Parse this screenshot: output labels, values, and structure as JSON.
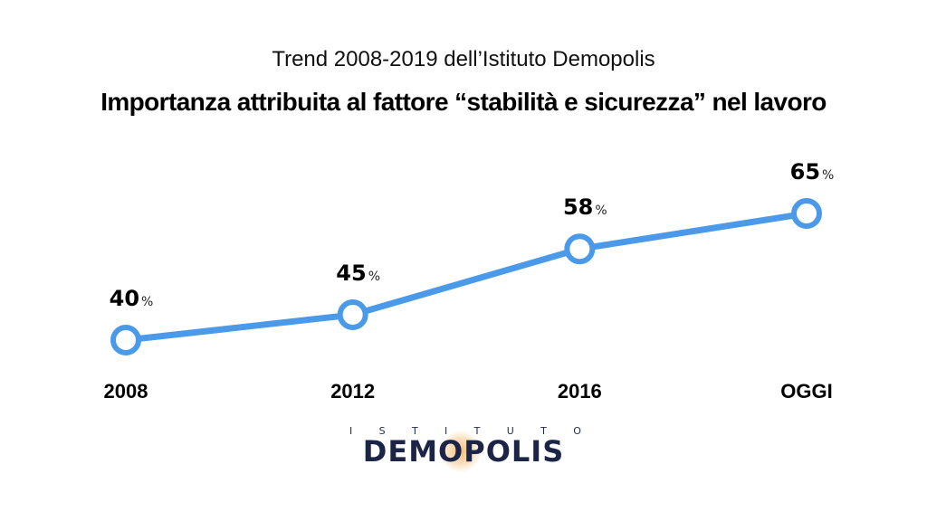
{
  "subtitle": "Trend 2008-2019 dell’Istituto Demopolis",
  "title": "Importanza attribuita al fattore “stabilità e sicurezza” nel lavoro",
  "colors": {
    "line": "#4a9ae9",
    "marker_fill": "#ffffff"
  },
  "chart_data": {
    "type": "line",
    "categories": [
      "2008",
      "2012",
      "2016",
      "OGGI"
    ],
    "values": [
      40,
      45,
      58,
      65
    ],
    "value_labels": [
      "40",
      "45",
      "58",
      "65"
    ],
    "unit": "%",
    "title": "Importanza attribuita al fattore “stabilità e sicurezza” nel lavoro",
    "subtitle": "Trend 2008-2019 dell’Istituto Demopolis",
    "grid": false,
    "legend": "none"
  },
  "logo": {
    "small_text": "ISTITUTO",
    "big_text": "DEMOPOLIS"
  }
}
